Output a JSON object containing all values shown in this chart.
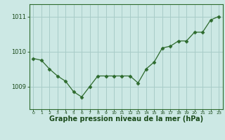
{
  "x": [
    0,
    1,
    2,
    3,
    4,
    5,
    6,
    7,
    8,
    9,
    10,
    11,
    12,
    13,
    14,
    15,
    16,
    17,
    18,
    19,
    20,
    21,
    22,
    23
  ],
  "y": [
    1009.8,
    1009.75,
    1009.5,
    1009.3,
    1009.15,
    1008.85,
    1008.7,
    1009.0,
    1009.3,
    1009.3,
    1009.3,
    1009.3,
    1009.3,
    1009.1,
    1009.5,
    1009.7,
    1010.1,
    1010.15,
    1010.3,
    1010.3,
    1010.55,
    1010.55,
    1010.9,
    1011.0
  ],
  "line_color": "#2d6a2d",
  "marker": "D",
  "marker_size": 2.5,
  "bg_color": "#cce8e4",
  "grid_color": "#a8ccc8",
  "axis_color": "#2d6a2d",
  "xlabel": "Graphe pression niveau de la mer (hPa)",
  "xlabel_fontsize": 7,
  "xlabel_color": "#1a4a1a",
  "tick_color": "#1a4a1a",
  "yticks": [
    1009,
    1010,
    1011
  ],
  "ylim": [
    1008.35,
    1011.35
  ],
  "xlim": [
    -0.5,
    23.5
  ],
  "xtick_labels": [
    "0",
    "1",
    "2",
    "3",
    "4",
    "5",
    "6",
    "7",
    "8",
    "9",
    "10",
    "11",
    "12",
    "13",
    "14",
    "15",
    "16",
    "17",
    "18",
    "19",
    "20",
    "21",
    "22",
    "23"
  ]
}
